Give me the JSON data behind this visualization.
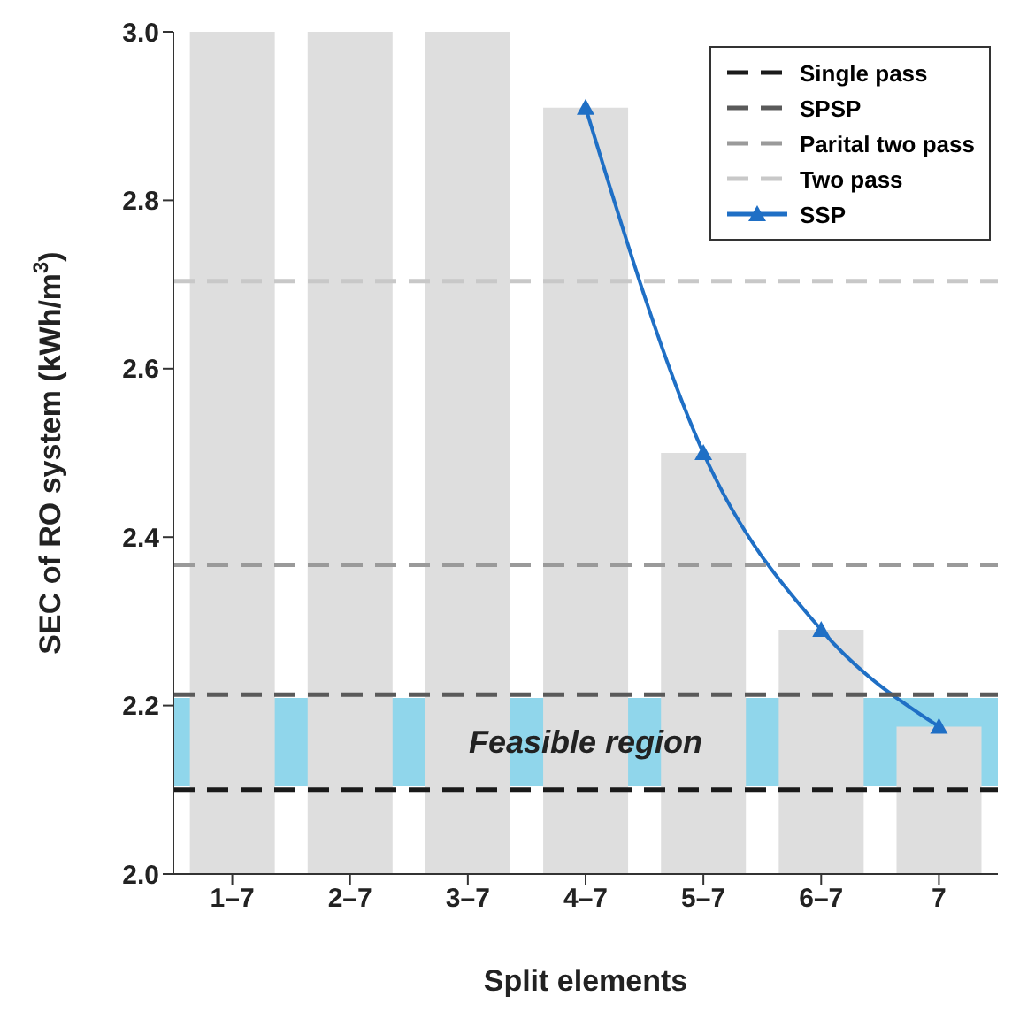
{
  "chart_data": {
    "type": "bar",
    "xlabel": "Split elements",
    "ylabel": "SEC of RO system (kWh/m$^{3}$)",
    "categories": [
      "1–7",
      "2–7",
      "3–7",
      "4–7",
      "5–7",
      "6–7",
      "7"
    ],
    "series": [
      {
        "color": "#dedede",
        "values": [
          3.0,
          3.0,
          3.0,
          2.91,
          2.5,
          2.29,
          2.175
        ]
      },
      {
        "type": "line",
        "name": "SSP",
        "color": "#1f6fc5",
        "marker": "triangle",
        "line_style": "solid",
        "values": [
          null,
          null,
          null,
          2.91,
          2.5,
          2.29,
          2.175
        ]
      }
    ],
    "ylim": [
      2.0,
      3.0
    ],
    "yticks": [
      {
        "value": 2.0,
        "label": "2.0"
      },
      {
        "value": 2.2,
        "label": "2.2"
      },
      {
        "value": 2.4,
        "label": "2.4"
      },
      {
        "value": 2.6,
        "label": "2.6"
      },
      {
        "value": 2.8,
        "label": "2.8"
      },
      {
        "value": 3.0,
        "label": "3.0"
      }
    ],
    "ref_lines": [
      {
        "axis": "y",
        "value": 2.1,
        "label": "Single pass",
        "color": "#1a1a1a",
        "line_style": "dashed"
      },
      {
        "axis": "y",
        "value": 2.213,
        "label": "SPSP",
        "color": "#5a5a5a",
        "line_style": "dashed"
      },
      {
        "axis": "y",
        "value": 2.367,
        "label": "Parital two pass",
        "color": "#9a9a9a",
        "line_style": "dashed"
      },
      {
        "axis": "y",
        "value": 2.704,
        "label": "Two pass",
        "color": "#c8c8c8",
        "line_style": "dashed"
      }
    ],
    "bands": [
      {
        "axis": "y",
        "from": 2.105,
        "to": 2.209,
        "label": "Feasible region",
        "color": "#7ccfe8"
      }
    ],
    "legend": "top right",
    "grid": false
  }
}
